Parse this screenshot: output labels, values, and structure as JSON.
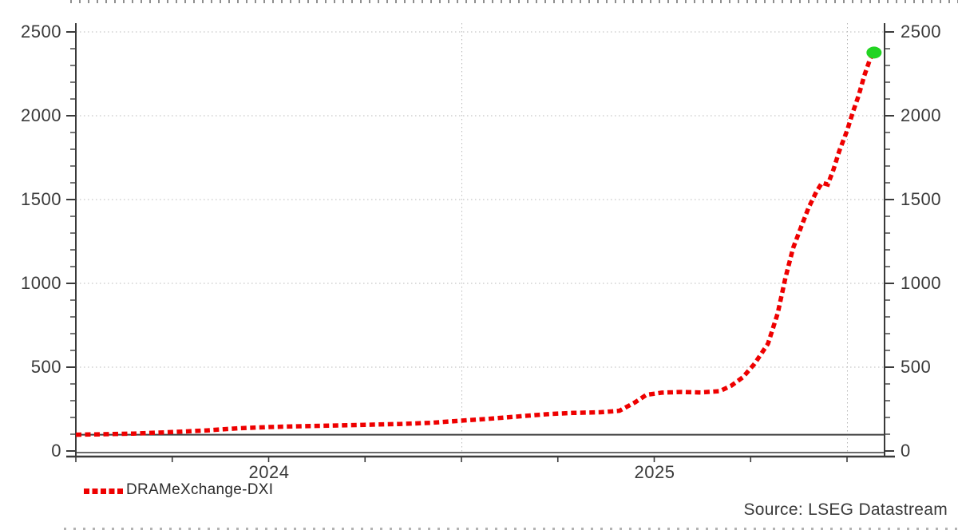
{
  "chart_data": {
    "type": "line",
    "title": "",
    "series": [
      {
        "name": "DRAMeXchange-DXI",
        "color": "#ee0000",
        "line_style": "dotted",
        "points": [
          [
            2024.0,
            97
          ],
          [
            2024.07,
            100
          ],
          [
            2024.15,
            104
          ],
          [
            2024.25,
            113
          ],
          [
            2024.34,
            123
          ],
          [
            2024.42,
            135
          ],
          [
            2024.5,
            143
          ],
          [
            2024.59,
            148
          ],
          [
            2024.67,
            152
          ],
          [
            2024.75,
            156
          ],
          [
            2024.84,
            161
          ],
          [
            2024.92,
            168
          ],
          [
            2025.0,
            181
          ],
          [
            2025.07,
            192
          ],
          [
            2025.13,
            203
          ],
          [
            2025.18,
            212
          ],
          [
            2025.23,
            221
          ],
          [
            2025.29,
            227
          ],
          [
            2025.36,
            231
          ],
          [
            2025.41,
            240
          ],
          [
            2025.45,
            290
          ],
          [
            2025.48,
            335
          ],
          [
            2025.52,
            348
          ],
          [
            2025.57,
            352
          ],
          [
            2025.62,
            349
          ],
          [
            2025.67,
            357
          ],
          [
            2025.7,
            390
          ],
          [
            2025.73,
            440
          ],
          [
            2025.76,
            520
          ],
          [
            2025.795,
            640
          ],
          [
            2025.82,
            820
          ],
          [
            2025.84,
            1030
          ],
          [
            2025.86,
            1210
          ],
          [
            2025.88,
            1330
          ],
          [
            2025.9,
            1450
          ],
          [
            2025.92,
            1545
          ],
          [
            2025.935,
            1600
          ],
          [
            2025.95,
            1590
          ],
          [
            2025.965,
            1680
          ],
          [
            2025.98,
            1790
          ],
          [
            2026.0,
            1910
          ],
          [
            2026.015,
            2020
          ],
          [
            2026.03,
            2120
          ],
          [
            2026.045,
            2240
          ],
          [
            2026.06,
            2340
          ],
          [
            2026.068,
            2372
          ]
        ]
      }
    ],
    "end_marker": {
      "color": "#22d422",
      "t": 2026.068,
      "v": 2372
    },
    "reference_line": {
      "value": 97,
      "color": "#3f3f3f"
    },
    "x_axis": {
      "range": [
        2024.0,
        2026.095
      ],
      "tick_labels": [
        "2024",
        "2025"
      ],
      "tick_label_positions": [
        2024.5,
        2025.5
      ],
      "year_gridlines": [
        2025.0,
        2026.0
      ],
      "minor_tick_interval_years": 0.25,
      "grid": "dotted"
    },
    "y_axis": {
      "range": [
        0,
        2625
      ],
      "tick_values": [
        2500,
        2000,
        1500,
        1000,
        500,
        0
      ],
      "tick_labels": [
        "2500",
        "2000",
        "1500",
        "1000",
        "500",
        "0"
      ],
      "minor_tick_step": 100,
      "sides": "both",
      "grid": "dotted"
    },
    "legend_position": "bottom-left"
  },
  "axis": {
    "y_labels": [
      "2500",
      "2000",
      "1500",
      "1000",
      "500",
      "0"
    ],
    "x_labels": [
      "2024",
      "2025"
    ]
  },
  "legend": {
    "label": "DRAMeXchange-DXI",
    "swatch_color": "#ee0000"
  },
  "footer": {
    "source": "Source: LSEG Datastream"
  },
  "colors": {
    "series_red": "#ee0000",
    "marker_green": "#22d422",
    "axis_gray": "#3a3a3a",
    "grid_gray": "#b8b8b8"
  }
}
